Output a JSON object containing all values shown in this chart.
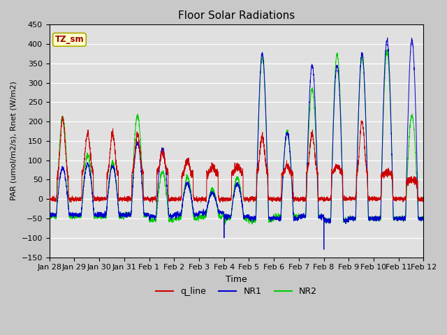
{
  "title": "Floor Solar Radiations",
  "xlabel": "Time",
  "ylabel": "PAR (umol/m2/s), Rnet (W/m2)",
  "ylim": [
    -150,
    450
  ],
  "yticks": [
    -150,
    -100,
    -50,
    0,
    50,
    100,
    150,
    200,
    250,
    300,
    350,
    400,
    450
  ],
  "x_labels": [
    "Jan 28",
    "Jan 29",
    "Jan 30",
    "Jan 31",
    "Feb 1",
    "Feb 2",
    "Feb 3",
    "Feb 4",
    "Feb 5",
    "Feb 6",
    "Feb 7",
    "Feb 8",
    "Feb 9",
    "Feb 10",
    "Feb 11",
    "Feb 12"
  ],
  "annotation": "TZ_sm",
  "colors": {
    "q_line": "#cc0000",
    "NR1": "#0000cc",
    "NR2": "#00cc00"
  },
  "legend_labels": [
    "q_line",
    "NR1",
    "NR2"
  ],
  "fig_bg": "#c8c8c8",
  "plot_bg": "#e0e0e0",
  "grid_color": "#ffffff"
}
